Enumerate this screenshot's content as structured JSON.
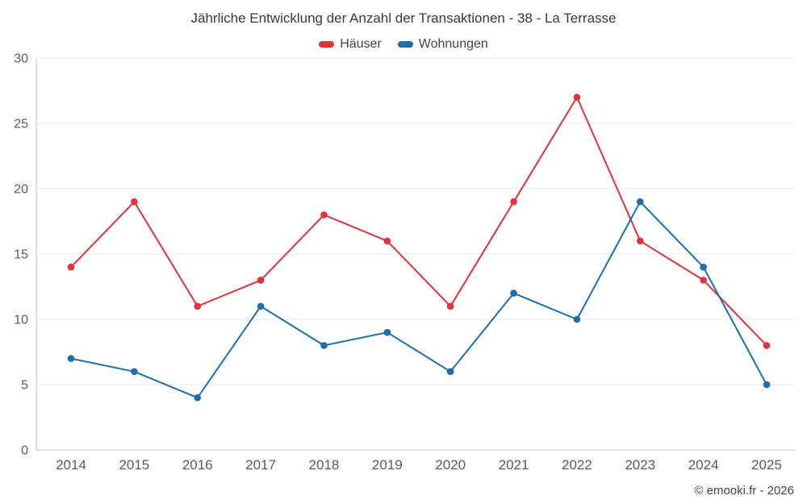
{
  "title": "Jährliche Entwicklung der Anzahl der Transaktionen - 38 - La Terrasse",
  "copyright": "© emooki.fr - 2026",
  "colors": {
    "hauser": "#e0333e",
    "wohnungen": "#1a6fa5",
    "grid": "#e8e8e8",
    "axis": "#cccccc",
    "tick_label": "#5a5a5a"
  },
  "chart_data": {
    "type": "line",
    "categories": [
      "2014",
      "2015",
      "2016",
      "2017",
      "2018",
      "2019",
      "2020",
      "2021",
      "2022",
      "2023",
      "2024",
      "2025"
    ],
    "series": [
      {
        "name": "Häuser",
        "color": "#e0333e",
        "values": [
          14,
          19,
          11,
          13,
          18,
          16,
          11,
          19,
          27,
          16,
          13,
          8
        ]
      },
      {
        "name": "Wohnungen",
        "color": "#1c6fa8",
        "values": [
          7,
          6,
          4,
          11,
          8,
          9,
          6,
          12,
          10,
          19,
          14,
          5
        ]
      }
    ],
    "title": "Jährliche Entwicklung der Anzahl der Transaktionen - 38 - La Terrasse",
    "xlabel": "",
    "ylabel": "",
    "ylim": [
      0,
      30
    ],
    "yticks": [
      0,
      5,
      10,
      15,
      20,
      25,
      30
    ],
    "grid": true,
    "legend_position": "top"
  }
}
